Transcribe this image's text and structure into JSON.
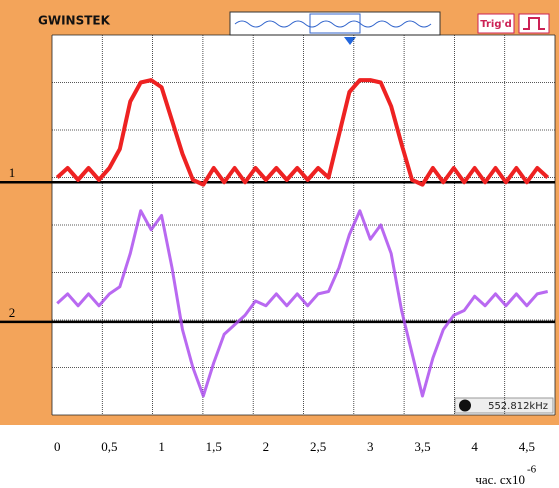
{
  "chart_data": {
    "type": "line",
    "brand": "GWINSTEK",
    "trigger_status": "Trig'd",
    "frequency_readout": "552.812kHz",
    "xlabel": "час. сх10",
    "xlabel_exponent": "-6",
    "x": [
      0,
      0.1,
      0.2,
      0.3,
      0.4,
      0.5,
      0.6,
      0.7,
      0.8,
      0.9,
      1.0,
      1.1,
      1.2,
      1.3,
      1.4,
      1.5,
      1.6,
      1.7,
      1.8,
      1.9,
      2.0,
      2.1,
      2.2,
      2.3,
      2.4,
      2.5,
      2.6,
      2.7,
      2.8,
      2.9,
      3.0,
      3.1,
      3.2,
      3.3,
      3.4,
      3.5,
      3.6,
      3.7,
      3.8,
      3.9,
      4.0,
      4.1,
      4.2,
      4.3,
      4.4,
      4.5,
      4.6,
      4.7
    ],
    "series": [
      {
        "color": "#ee2222",
        "values": [
          1.0,
          1.2,
          0.95,
          1.2,
          0.95,
          1.2,
          1.6,
          2.6,
          3.0,
          3.05,
          2.9,
          2.2,
          1.5,
          0.95,
          0.85,
          1.2,
          0.9,
          1.2,
          0.9,
          1.2,
          0.95,
          1.2,
          0.95,
          1.2,
          0.95,
          1.2,
          1.0,
          1.9,
          2.8,
          3.05,
          3.05,
          3.0,
          2.5,
          1.7,
          0.95,
          0.85,
          1.2,
          0.9,
          1.2,
          0.9,
          1.2,
          0.9,
          1.2,
          0.9,
          1.2,
          0.9,
          1.2,
          1.0
        ]
      },
      {
        "color": "#a844ee",
        "values": [
          -1.65,
          -1.45,
          -1.7,
          -1.45,
          -1.7,
          -1.45,
          -1.3,
          -0.6,
          0.3,
          -0.1,
          0.2,
          -0.9,
          -2.2,
          -3.0,
          -3.6,
          -2.9,
          -2.3,
          -2.1,
          -1.9,
          -1.6,
          -1.7,
          -1.45,
          -1.7,
          -1.45,
          -1.7,
          -1.45,
          -1.4,
          -0.9,
          -0.2,
          0.3,
          -0.3,
          0.0,
          -0.6,
          -1.8,
          -2.7,
          -3.6,
          -2.8,
          -2.2,
          -1.9,
          -1.8,
          -1.5,
          -1.7,
          -1.45,
          -1.7,
          -1.45,
          -1.7,
          -1.45,
          -1.4
        ]
      }
    ],
    "channel_markers": [
      {
        "label": "1",
        "level": 0.9
      },
      {
        "label": "2",
        "level": -2.04
      }
    ],
    "xlim": [
      -0.05,
      4.77
    ],
    "ylim": [
      -4,
      4
    ],
    "xticks": [
      0,
      {
        "value": 0.5,
        "label": "0,5"
      },
      1,
      {
        "value": 1.5,
        "label": "1,5"
      },
      2,
      {
        "value": 2.5,
        "label": "2,5"
      },
      3,
      {
        "value": 3.5,
        "label": "3,5"
      },
      4,
      {
        "value": 4.5,
        "label": "4,5"
      }
    ]
  }
}
